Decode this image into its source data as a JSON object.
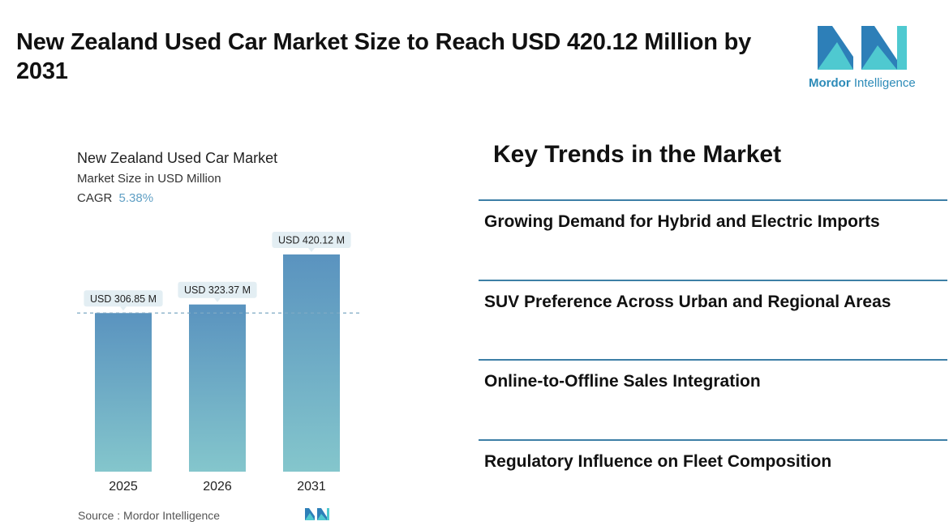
{
  "title": "New Zealand Used Car Market Size to Reach USD 420.12 Million by 2031",
  "logo": {
    "brand": "Mordor",
    "suffix": " Intelligence",
    "color_dark": "#2d7fb8",
    "color_light": "#4fc9d0"
  },
  "chart_data": {
    "type": "bar",
    "title": "New Zealand Used Car Market",
    "subtitle": "Market Size in USD Million",
    "cagr_label": "CAGR",
    "cagr_value": "5.38%",
    "categories": [
      "2025",
      "2026",
      "2031"
    ],
    "values": [
      306.85,
      323.37,
      420.12
    ],
    "data_labels": [
      "USD 306.85 M",
      "USD 323.37 M",
      "USD 420.12 M"
    ],
    "ylim": [
      0,
      420.12
    ],
    "reference_line": 306.85,
    "bar_color_top": "#5a93bf",
    "bar_color_bottom": "#84c6cc",
    "grid": false
  },
  "source": "Source :  Mordor Intelligence",
  "trends": {
    "title": "Key Trends in the Market",
    "items": [
      "Growing Demand for Hybrid and Electric Imports",
      "SUV Preference Across Urban and Regional Areas",
      "Online-to-Offline Sales Integration",
      "Regulatory Influence on Fleet Composition"
    ]
  }
}
